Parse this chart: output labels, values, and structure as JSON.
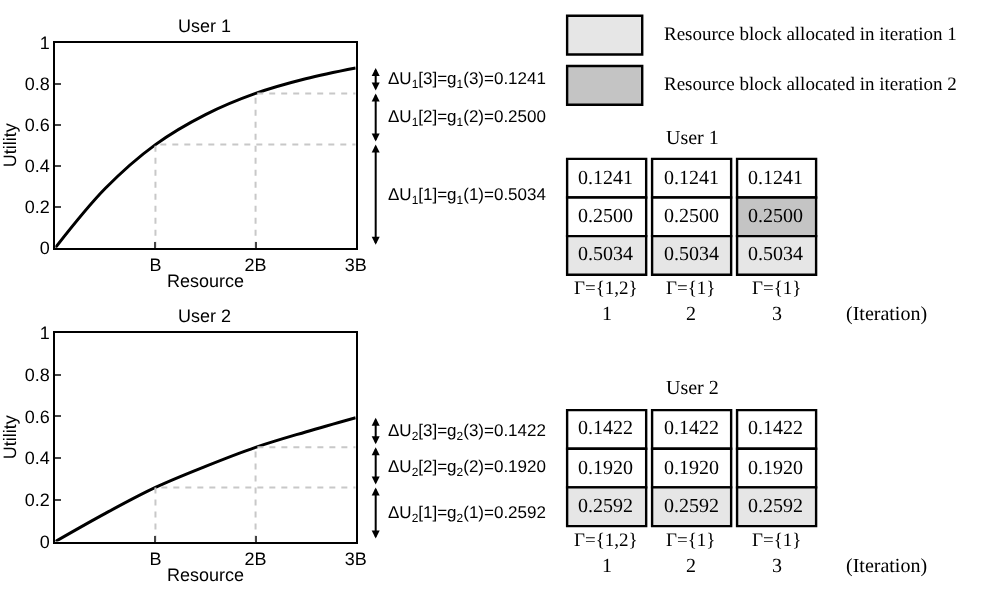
{
  "chart_data": [
    {
      "type": "line",
      "title": "User 1",
      "xlabel": "Resource",
      "ylabel": "Utility",
      "x": [
        0,
        0.5,
        1,
        1.5,
        2,
        2.5,
        3
      ],
      "series": [
        {
          "color": "#000000",
          "values": [
            0,
            0.29,
            0.5034,
            0.65,
            0.7534,
            0.825,
            0.8775
          ]
        },
        {
          "color": "#c8c8c8",
          "x": [
            1,
            1,
            3
          ],
          "values": [
            0,
            0.5034,
            0.5034
          ],
          "line_style": "dotted"
        },
        {
          "color": "#c8c8c8",
          "x": [
            2,
            2,
            3
          ],
          "values": [
            0,
            0.7534,
            0.7534
          ],
          "line_style": "dotted"
        }
      ],
      "xlim": [
        0,
        3
      ],
      "xticks": [
        {
          "value": 0,
          "label": null
        },
        {
          "value": 1,
          "label": "B"
        },
        {
          "value": 2,
          "label": "2B"
        },
        {
          "value": 3,
          "label": "3B"
        }
      ],
      "ylim": [
        0,
        1
      ],
      "yticks": [
        0,
        0.2,
        0.4,
        0.6,
        0.8,
        1
      ],
      "marker": "none",
      "line_style": "solid",
      "annotations": [
        "ΔU$_{1}$[3]=g$_{1}$(3)=0.1241",
        "ΔU$_{1}$[2]=g$_{1}$(2)=0.2500",
        "ΔU$_{1}$[1]=g$_{1}$(1)=0.5034"
      ]
    },
    {
      "type": "other",
      "categories": [
        "Resource block allocated in iteration 1",
        "Resource block allocated in iteration 2"
      ],
      "colors": [
        "#e6e6e6",
        "#c4c4c4"
      ]
    },
    {
      "type": "other",
      "title": "User 1",
      "categories": [
        "Γ={1,2}",
        "Γ={1}",
        "Γ={1}"
      ],
      "cell_labels": [
        [
          "0.1241",
          "0.1241",
          "0.1241"
        ],
        [
          "0.2500",
          "0.2500",
          "0.2500"
        ],
        [
          "0.5034",
          "0.5034",
          "0.5034"
        ]
      ],
      "colors": [
        [
          "#ffffff",
          "#ffffff",
          "#ffffff"
        ],
        [
          "#ffffff",
          "#ffffff",
          "#c4c4c4"
        ],
        [
          "#e6e6e6",
          "#e6e6e6",
          "#e6e6e6"
        ]
      ],
      "annotations": [
        "1",
        "2",
        "3",
        "(Iteration)"
      ]
    },
    {
      "type": "line",
      "title": "User 2",
      "xlabel": "Resource",
      "ylabel": "Utility",
      "x": [
        0,
        0.5,
        1,
        1.5,
        2,
        2.5,
        3
      ],
      "series": [
        {
          "color": "#000000",
          "values": [
            0,
            0.135,
            0.2592,
            0.36,
            0.4512,
            0.525,
            0.5934
          ]
        },
        {
          "color": "#c8c8c8",
          "x": [
            1,
            1,
            3
          ],
          "values": [
            0,
            0.2592,
            0.2592
          ],
          "line_style": "dotted"
        },
        {
          "color": "#c8c8c8",
          "x": [
            2,
            2,
            3
          ],
          "values": [
            0,
            0.4512,
            0.4512
          ],
          "line_style": "dotted"
        }
      ],
      "xlim": [
        0,
        3
      ],
      "xticks": [
        {
          "value": 0,
          "label": null
        },
        {
          "value": 1,
          "label": "B"
        },
        {
          "value": 2,
          "label": "2B"
        },
        {
          "value": 3,
          "label": "3B"
        }
      ],
      "ylim": [
        0,
        1
      ],
      "yticks": [
        0,
        0.2,
        0.4,
        0.6,
        0.8,
        1
      ],
      "marker": "none",
      "line_style": "solid",
      "annotations": [
        "ΔU$_{2}$[3]=g$_{2}$(3)=0.1422",
        "ΔU$_{2}$[2]=g$_{2}$(2)=0.1920",
        "ΔU$_{2}$[1]=g$_{2}$(1)=0.2592"
      ]
    },
    {
      "type": "other",
      "title": "User 2",
      "categories": [
        "Γ={1,2}",
        "Γ={1}",
        "Γ={1}"
      ],
      "cell_labels": [
        [
          "0.1422",
          "0.1422",
          "0.1422"
        ],
        [
          "0.1920",
          "0.1920",
          "0.1920"
        ],
        [
          "0.2592",
          "0.2592",
          "0.2592"
        ]
      ],
      "colors": [
        [
          "#ffffff",
          "#ffffff",
          "#ffffff"
        ],
        [
          "#ffffff",
          "#ffffff",
          "#ffffff"
        ],
        [
          "#e6e6e6",
          "#e6e6e6",
          "#e6e6e6"
        ]
      ],
      "annotations": [
        "1",
        "2",
        "3",
        "(Iteration)"
      ]
    }
  ]
}
